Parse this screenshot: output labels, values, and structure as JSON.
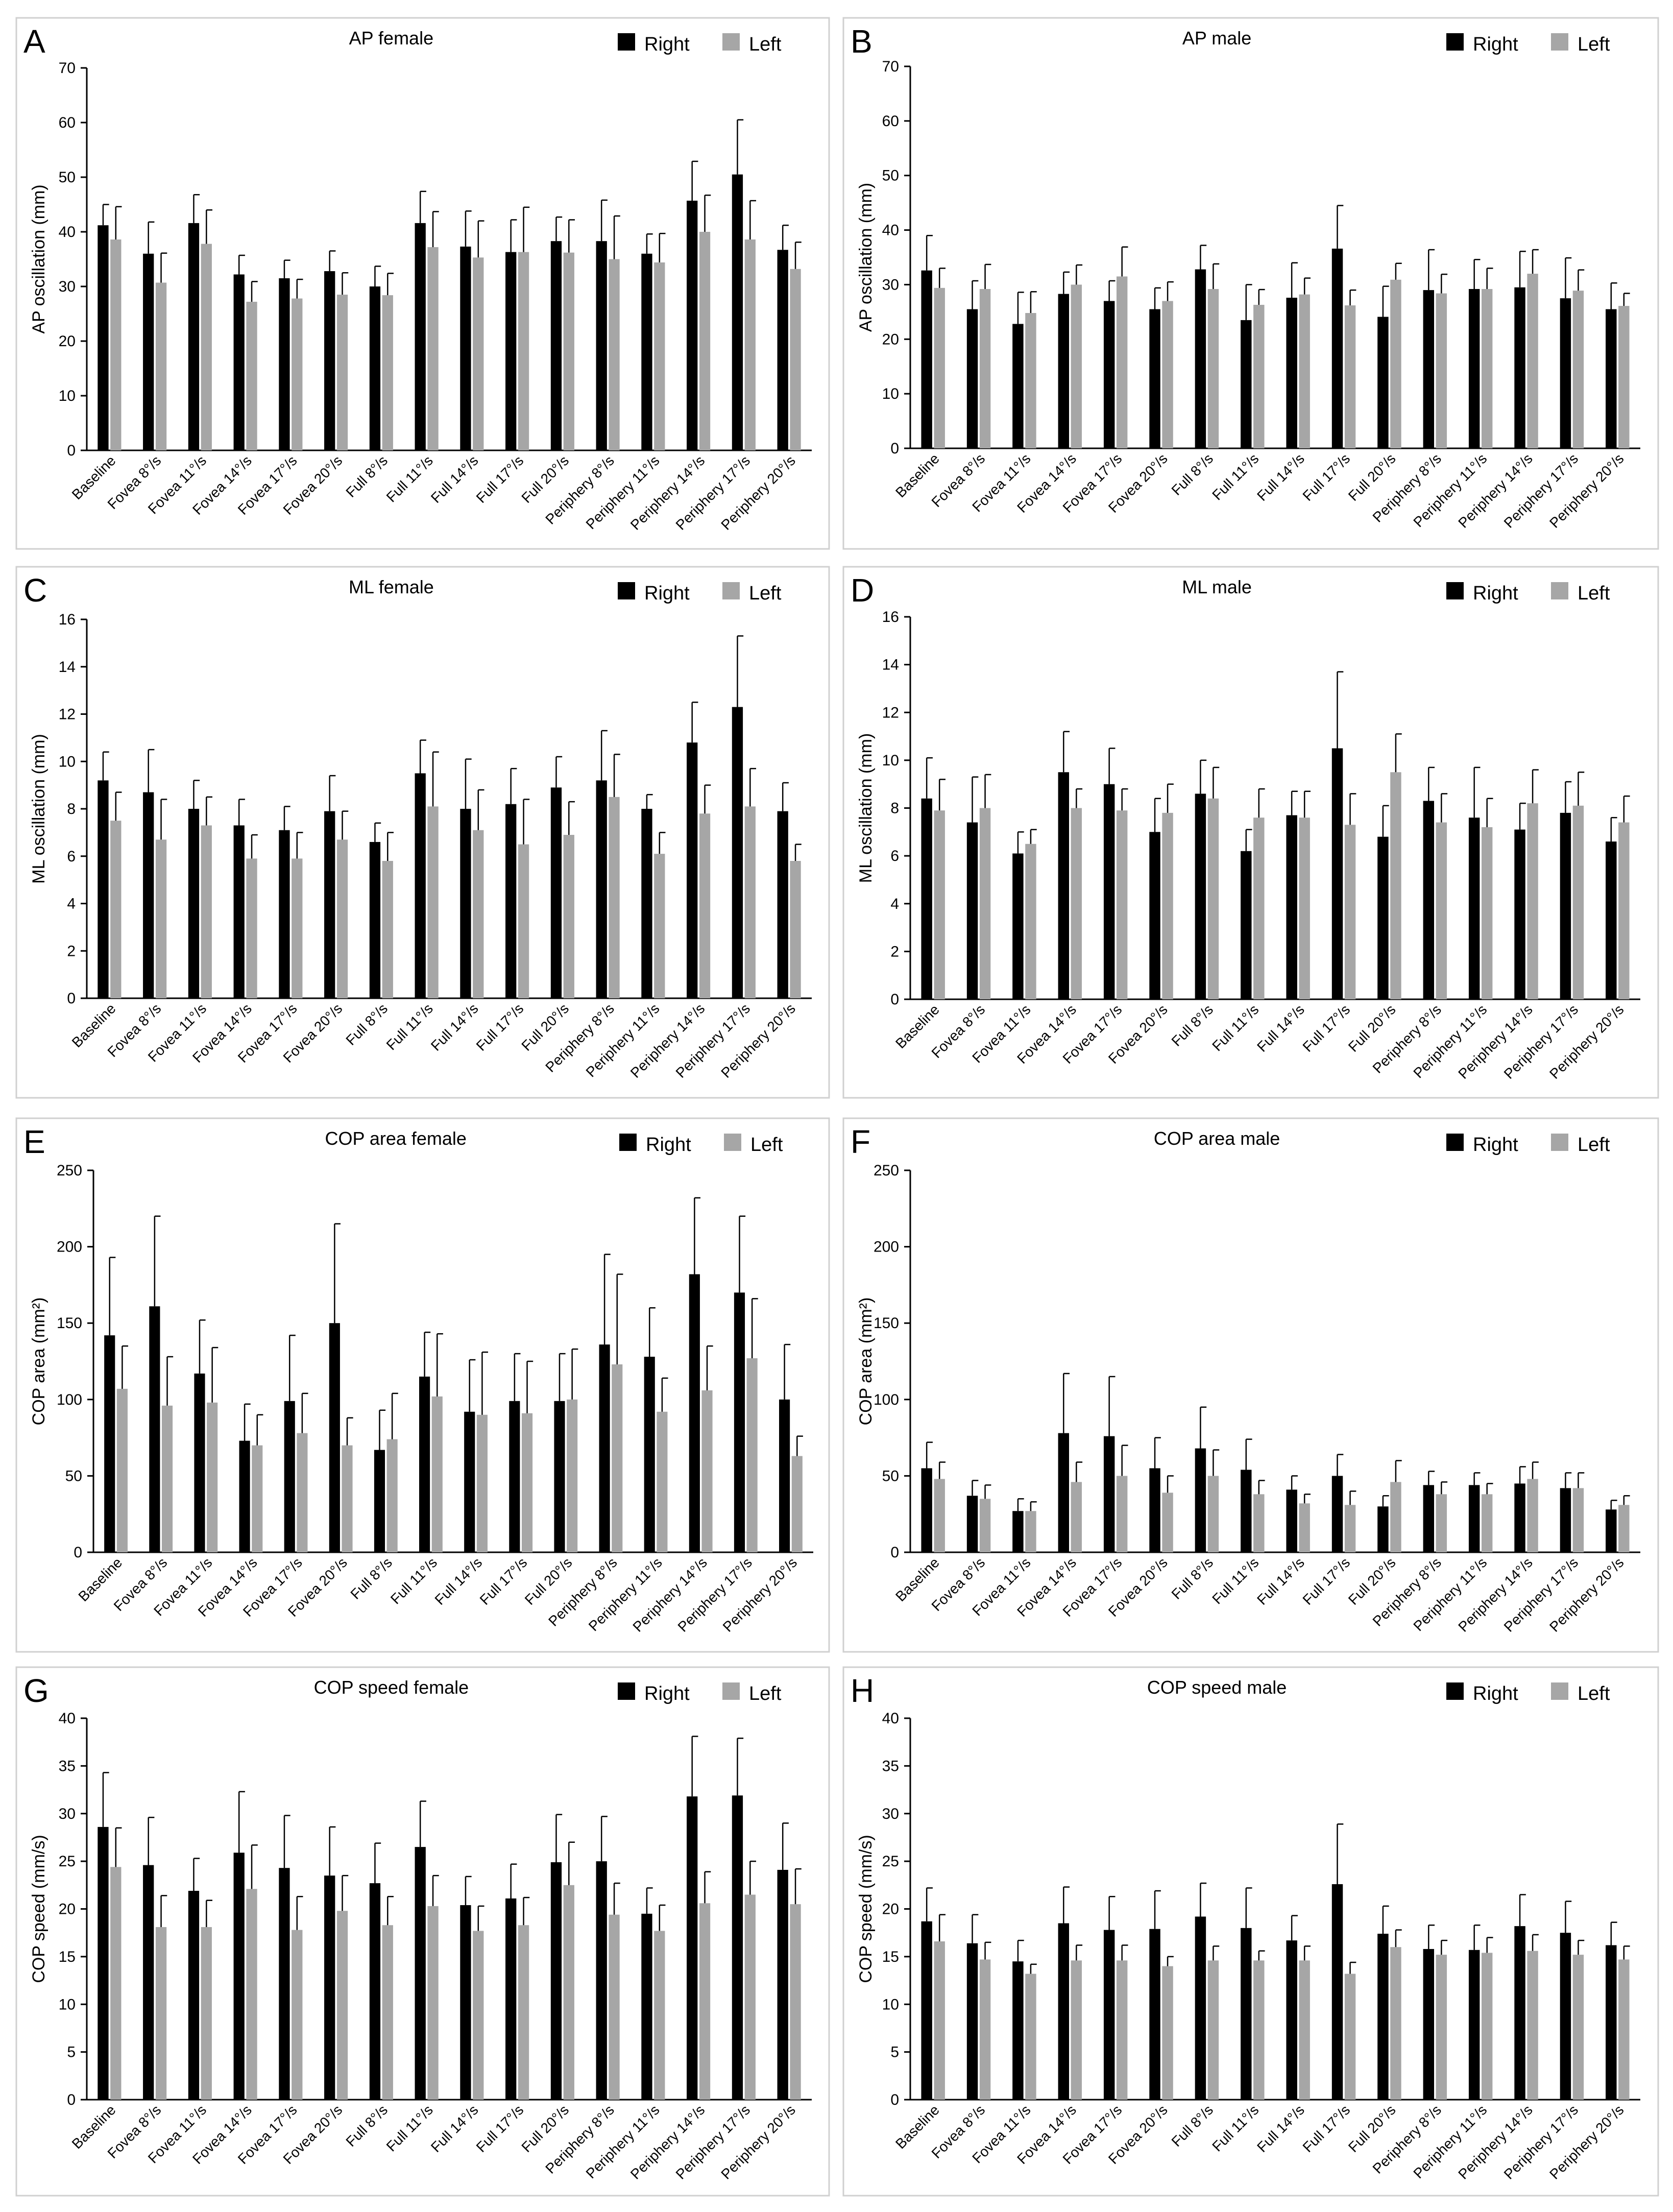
{
  "chart_data": [
    {
      "panel": "A",
      "type": "bar",
      "title": "AP female",
      "ylabel": "AP oscillation (mm)",
      "ylim": [
        0,
        70
      ],
      "ystep": 10,
      "legend_position": "top-right",
      "colors": {
        "Right": "#000000",
        "Left": "#a6a6a6"
      },
      "categories": [
        "Baseline",
        "Fovea 8°/s",
        "Fovea 11°/s",
        "Fovea 14°/s",
        "Fovea 17°/s",
        "Fovea 20°/s",
        "Full 8°/s",
        "Full 11°/s",
        "Full 14°/s",
        "Full 17°/s",
        "Full 20°/s",
        "Periphery 8°/s",
        "Periphery 11°/s",
        "Periphery 14°/s",
        "Periphery 17°/s",
        "Periphery 20°/s"
      ],
      "series": [
        {
          "name": "Right",
          "values": [
            41.2,
            36.0,
            41.6,
            32.2,
            31.5,
            32.8,
            30.0,
            41.6,
            37.3,
            36.3,
            38.3,
            38.3,
            36.0,
            45.7,
            50.5,
            36.7
          ],
          "errors": [
            3.8,
            5.8,
            5.2,
            3.5,
            3.3,
            3.7,
            3.7,
            5.8,
            6.5,
            5.9,
            4.4,
            7.5,
            3.6,
            7.2,
            10.0,
            4.5
          ]
        },
        {
          "name": "Left",
          "values": [
            38.6,
            30.7,
            37.8,
            27.2,
            27.8,
            28.5,
            28.4,
            37.2,
            35.3,
            36.3,
            36.2,
            35.0,
            34.4,
            40.0,
            38.6,
            33.2
          ],
          "errors": [
            6.0,
            5.4,
            6.2,
            3.7,
            3.5,
            4.0,
            4.0,
            6.5,
            6.7,
            8.2,
            6.0,
            7.9,
            5.3,
            6.7,
            7.1,
            4.9
          ]
        }
      ]
    },
    {
      "panel": "B",
      "type": "bar",
      "title": "AP male",
      "ylabel": "AP oscillation (mm)",
      "ylim": [
        0,
        70
      ],
      "ystep": 10,
      "legend_position": "top-right",
      "colors": {
        "Right": "#000000",
        "Left": "#a6a6a6"
      },
      "categories": [
        "Baseline",
        "Fovea 8°/s",
        "Fovea 11°/s",
        "Fovea 14°/s",
        "Fovea 17°/s",
        "Fovea 20°/s",
        "Full 8°/s",
        "Full 11°/s",
        "Full 14°/s",
        "Full 17°/s",
        "Full 20°/s",
        "Periphery 8°/s",
        "Periphery 11°/s",
        "Periphery 14°/s",
        "Periphery 17°/s",
        "Periphery 20°/s"
      ],
      "series": [
        {
          "name": "Right",
          "values": [
            32.6,
            25.5,
            22.8,
            28.3,
            27.0,
            25.5,
            32.8,
            23.5,
            27.6,
            36.6,
            24.1,
            29.0,
            29.2,
            29.5,
            27.5,
            25.5
          ],
          "errors": [
            6.4,
            5.2,
            5.8,
            4.0,
            3.7,
            3.9,
            4.4,
            6.5,
            6.4,
            7.9,
            5.6,
            7.4,
            5.4,
            6.6,
            7.4,
            4.8
          ]
        },
        {
          "name": "Left",
          "values": [
            29.4,
            29.2,
            24.8,
            30.0,
            31.5,
            27.0,
            29.2,
            26.3,
            28.2,
            26.2,
            30.9,
            28.4,
            29.2,
            32.0,
            28.9,
            26.1
          ],
          "errors": [
            3.6,
            4.5,
            3.9,
            3.6,
            5.4,
            3.5,
            4.6,
            2.8,
            3.0,
            2.8,
            3.0,
            3.5,
            3.8,
            4.4,
            3.8,
            2.3
          ]
        }
      ]
    },
    {
      "panel": "C",
      "type": "bar",
      "title": "ML female",
      "ylabel": "ML oscillation (mm)",
      "ylim": [
        0,
        16
      ],
      "ystep": 2,
      "legend_position": "top-right",
      "colors": {
        "Right": "#000000",
        "Left": "#a6a6a6"
      },
      "categories": [
        "Baseline",
        "Fovea 8°/s",
        "Fovea 11°/s",
        "Fovea 14°/s",
        "Fovea 17°/s",
        "Fovea 20°/s",
        "Full 8°/s",
        "Full 11°/s",
        "Full 14°/s",
        "Full 17°/s",
        "Full 20°/s",
        "Periphery 8°/s",
        "Periphery 11°/s",
        "Periphery 14°/s",
        "Periphery 17°/s",
        "Periphery 20°/s"
      ],
      "series": [
        {
          "name": "Right",
          "values": [
            9.2,
            8.7,
            8.0,
            7.3,
            7.1,
            7.9,
            6.6,
            9.5,
            8.0,
            8.2,
            8.9,
            9.2,
            8.0,
            10.8,
            12.3,
            7.9
          ],
          "errors": [
            1.2,
            1.8,
            1.2,
            1.1,
            1.0,
            1.5,
            0.8,
            1.4,
            2.1,
            1.5,
            1.3,
            2.1,
            0.6,
            1.7,
            3.0,
            1.2
          ]
        },
        {
          "name": "Left",
          "values": [
            7.5,
            6.7,
            7.3,
            5.9,
            5.9,
            6.7,
            5.8,
            8.1,
            7.1,
            6.5,
            6.9,
            8.5,
            6.1,
            7.8,
            8.1,
            5.8
          ],
          "errors": [
            1.2,
            1.7,
            1.2,
            1.0,
            1.1,
            1.2,
            1.2,
            2.3,
            1.7,
            1.9,
            1.4,
            1.8,
            0.9,
            1.2,
            1.6,
            0.7
          ]
        }
      ]
    },
    {
      "panel": "D",
      "type": "bar",
      "title": "ML male",
      "ylabel": "ML oscillation (mm)",
      "ylim": [
        0,
        16
      ],
      "ystep": 2,
      "legend_position": "top-right",
      "colors": {
        "Right": "#000000",
        "Left": "#a6a6a6"
      },
      "categories": [
        "Baseline",
        "Fovea 8°/s",
        "Fovea 11°/s",
        "Fovea 14°/s",
        "Fovea 17°/s",
        "Fovea 20°/s",
        "Full 8°/s",
        "Full 11°/s",
        "Full 14°/s",
        "Full 17°/s",
        "Full 20°/s",
        "Periphery 8°/s",
        "Periphery 11°/s",
        "Periphery 14°/s",
        "Periphery 17°/s",
        "Periphery 20°/s"
      ],
      "series": [
        {
          "name": "Right",
          "values": [
            8.4,
            7.4,
            6.1,
            9.5,
            9.0,
            7.0,
            8.6,
            6.2,
            7.7,
            10.5,
            6.8,
            8.3,
            7.6,
            7.1,
            7.8,
            6.6
          ],
          "errors": [
            1.7,
            1.9,
            0.9,
            1.7,
            1.5,
            1.4,
            1.4,
            0.9,
            1.0,
            3.2,
            1.3,
            1.4,
            2.1,
            1.1,
            1.3,
            1.0
          ]
        },
        {
          "name": "Left",
          "values": [
            7.9,
            8.0,
            6.5,
            8.0,
            7.9,
            7.8,
            8.4,
            7.6,
            7.6,
            7.3,
            9.5,
            7.4,
            7.2,
            8.2,
            8.1,
            7.4
          ],
          "errors": [
            1.3,
            1.4,
            0.6,
            0.8,
            0.9,
            1.2,
            1.3,
            1.2,
            1.1,
            1.3,
            1.6,
            1.2,
            1.2,
            1.4,
            1.4,
            1.1
          ]
        }
      ]
    },
    {
      "panel": "E",
      "type": "bar",
      "title": "COP area female",
      "ylabel": "COP area (mm²)",
      "ylim": [
        0,
        250
      ],
      "ystep": 50,
      "legend_position": "top-right",
      "colors": {
        "Right": "#000000",
        "Left": "#a6a6a6"
      },
      "categories": [
        "Baseline",
        "Fovea 8°/s",
        "Fovea 11°/s",
        "Fovea 14°/s",
        "Fovea 17°/s",
        "Fovea 20°/s",
        "Full 8°/s",
        "Full 11°/s",
        "Full 14°/s",
        "Full 17°/s",
        "Full 20°/s",
        "Periphery 8°/s",
        "Periphery 11°/s",
        "Periphery 14°/s",
        "Periphery 17°/s",
        "Periphery 20°/s"
      ],
      "series": [
        {
          "name": "Right",
          "values": [
            142,
            161,
            117,
            73,
            99,
            150,
            67,
            115,
            92,
            99,
            99,
            136,
            128,
            182,
            170,
            100
          ],
          "errors": [
            51,
            59,
            35,
            24,
            43,
            65,
            26,
            29,
            34,
            31,
            31,
            59,
            32,
            50,
            50,
            36
          ]
        },
        {
          "name": "Left",
          "values": [
            107,
            96,
            98,
            70,
            78,
            70,
            74,
            102,
            90,
            91,
            100,
            123,
            92,
            106,
            127,
            63
          ],
          "errors": [
            28,
            32,
            36,
            20,
            26,
            18,
            30,
            41,
            41,
            34,
            33,
            59,
            22,
            29,
            39,
            13
          ]
        }
      ]
    },
    {
      "panel": "F",
      "type": "bar",
      "title": "COP area male",
      "ylabel": "COP area (mm²)",
      "ylim": [
        0,
        250
      ],
      "ystep": 50,
      "legend_position": "top-right",
      "colors": {
        "Right": "#000000",
        "Left": "#a6a6a6"
      },
      "categories": [
        "Baseline",
        "Fovea 8°/s",
        "Fovea 11°/s",
        "Fovea 14°/s",
        "Fovea 17°/s",
        "Fovea 20°/s",
        "Full 8°/s",
        "Full 11°/s",
        "Full 14°/s",
        "Full 17°/s",
        "Full 20°/s",
        "Periphery 8°/s",
        "Periphery 11°/s",
        "Periphery 14°/s",
        "Periphery 17°/s",
        "Periphery 20°/s"
      ],
      "series": [
        {
          "name": "Right",
          "values": [
            55,
            37,
            27,
            78,
            76,
            55,
            68,
            54,
            41,
            50,
            30,
            44,
            44,
            45,
            42,
            28
          ],
          "errors": [
            17,
            10,
            8,
            39,
            39,
            20,
            27,
            20,
            9,
            14,
            7,
            9,
            8,
            11,
            10,
            6
          ]
        },
        {
          "name": "Left",
          "values": [
            48,
            35,
            27,
            46,
            50,
            39,
            50,
            38,
            32,
            31,
            46,
            38,
            38,
            48,
            42,
            31
          ],
          "errors": [
            11,
            9,
            6,
            13,
            20,
            11,
            17,
            9,
            6,
            9,
            14,
            8,
            7,
            11,
            10,
            6
          ]
        }
      ]
    },
    {
      "panel": "G",
      "type": "bar",
      "title": "COP speed female",
      "ylabel": "COP speed (mm/s)",
      "ylim": [
        0,
        40
      ],
      "ystep": 5,
      "legend_position": "top-right",
      "colors": {
        "Right": "#000000",
        "Left": "#a6a6a6"
      },
      "categories": [
        "Baseline",
        "Fovea 8°/s",
        "Fovea 11°/s",
        "Fovea 14°/s",
        "Fovea 17°/s",
        "Fovea 20°/s",
        "Full 8°/s",
        "Full 11°/s",
        "Full 14°/s",
        "Full 17°/s",
        "Full 20°/s",
        "Periphery 8°/s",
        "Periphery 11°/s",
        "Periphery 14°/s",
        "Periphery 17°/s",
        "Periphery 20°/s"
      ],
      "series": [
        {
          "name": "Right",
          "values": [
            28.6,
            24.6,
            21.9,
            25.9,
            24.3,
            23.5,
            22.7,
            26.5,
            20.4,
            21.1,
            24.9,
            25.0,
            19.5,
            31.8,
            31.9,
            24.1
          ],
          "errors": [
            5.7,
            5.0,
            3.4,
            6.4,
            5.5,
            5.1,
            4.2,
            4.8,
            3.0,
            3.6,
            5.0,
            4.7,
            2.7,
            6.3,
            6.0,
            4.9
          ]
        },
        {
          "name": "Left",
          "values": [
            24.4,
            18.1,
            18.1,
            22.1,
            17.8,
            19.8,
            18.3,
            20.3,
            17.7,
            18.3,
            22.5,
            19.4,
            17.7,
            20.6,
            21.5,
            20.5
          ],
          "errors": [
            4.1,
            3.3,
            2.8,
            4.6,
            3.5,
            3.7,
            3.0,
            3.2,
            2.6,
            2.9,
            4.5,
            3.3,
            2.7,
            3.3,
            3.5,
            3.7
          ]
        }
      ]
    },
    {
      "panel": "H",
      "type": "bar",
      "title": "COP speed male",
      "ylabel": "COP speed (mm/s)",
      "ylim": [
        0,
        40
      ],
      "ystep": 5,
      "legend_position": "top-right",
      "colors": {
        "Right": "#000000",
        "Left": "#a6a6a6"
      },
      "categories": [
        "Baseline",
        "Fovea 8°/s",
        "Fovea 11°/s",
        "Fovea 14°/s",
        "Fovea 17°/s",
        "Fovea 20°/s",
        "Full 8°/s",
        "Full 11°/s",
        "Full 14°/s",
        "Full 17°/s",
        "Full 20°/s",
        "Periphery 8°/s",
        "Periphery 11°/s",
        "Periphery 14°/s",
        "Periphery 17°/s",
        "Periphery 20°/s"
      ],
      "series": [
        {
          "name": "Right",
          "values": [
            18.7,
            16.4,
            14.5,
            18.5,
            17.8,
            17.9,
            19.2,
            18.0,
            16.7,
            22.6,
            17.4,
            15.8,
            15.7,
            18.2,
            17.5,
            16.2
          ],
          "errors": [
            3.5,
            3.0,
            2.2,
            3.8,
            3.5,
            4.0,
            3.5,
            4.2,
            2.6,
            6.3,
            2.9,
            2.5,
            2.6,
            3.3,
            3.3,
            2.4
          ]
        },
        {
          "name": "Left",
          "values": [
            16.6,
            14.7,
            13.2,
            14.6,
            14.6,
            14.0,
            14.6,
            14.6,
            14.6,
            13.2,
            16.0,
            15.2,
            15.4,
            15.6,
            15.2,
            14.7
          ],
          "errors": [
            2.8,
            1.8,
            1.0,
            1.6,
            1.6,
            1.0,
            1.5,
            1.0,
            1.5,
            1.2,
            1.8,
            1.5,
            1.6,
            1.7,
            1.5,
            1.4
          ]
        }
      ]
    }
  ]
}
